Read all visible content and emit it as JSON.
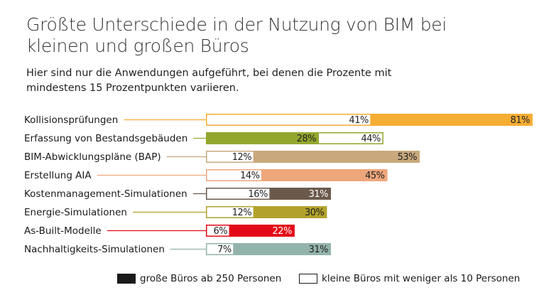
{
  "chart_data": {
    "type": "bar",
    "title": "Größte Unterschiede in der Nutzung von BIM bei kleinen und großen Büros",
    "subtitle": "Hier sind nur die Anwendungen aufgeführt, bei denen die Prozente mit mindestens 15 Prozentpunkten variieren.",
    "categories": [
      "Kollisionsprüfungen",
      "Erfassung von Bestandsgebäuden",
      "BIM-Abwicklungspläne (BAP)",
      "Erstellung AIA",
      "Kostenmanagement-Simulationen",
      "Energie-Simulationen",
      "As-Built-Modelle",
      "Nachhaltigkeits-Simulationen"
    ],
    "colors": [
      "#f6ad33",
      "#93a72f",
      "#c8a87c",
      "#eea67b",
      "#6b5a4c",
      "#b2a22c",
      "#e20b17",
      "#92b3ab"
    ],
    "series": [
      {
        "name": "große Büros ab 250 Personen",
        "values": [
          81,
          28,
          53,
          45,
          31,
          30,
          22,
          31
        ]
      },
      {
        "name": "kleine Büros mit weniger als 10 Personen",
        "values": [
          41,
          44,
          12,
          14,
          16,
          12,
          6,
          7
        ]
      }
    ],
    "value_suffix": "%",
    "xlim": [
      0,
      81
    ],
    "legend_position": "bottom-right"
  }
}
